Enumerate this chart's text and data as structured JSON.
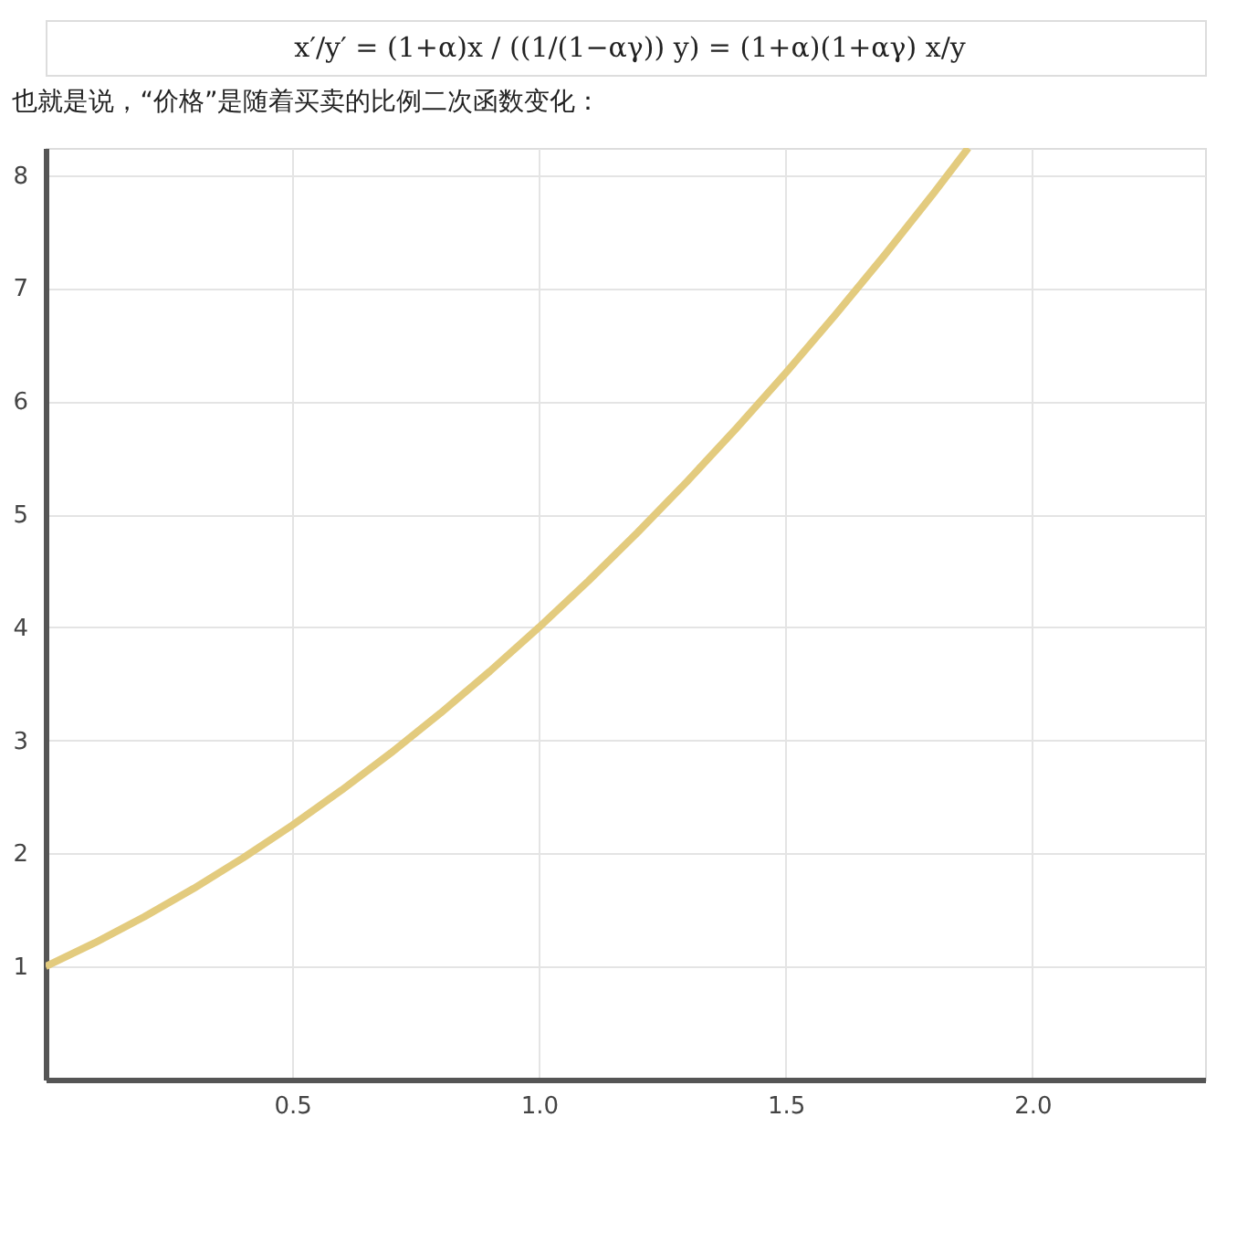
{
  "chart_data": {
    "type": "line",
    "title": "也就是说，“价格”是随着买卖的比例二次函数变化：",
    "annotations": [
      "x′/y′ = (1+α)x / ((1/(1−αγ)) y) = (1+α)(1+αγ) x/y"
    ],
    "x": [
      0,
      0.1,
      0.2,
      0.3,
      0.4,
      0.5,
      0.6,
      0.7,
      0.8,
      0.9,
      1.0,
      1.1,
      1.2,
      1.3,
      1.4,
      1.5,
      1.6,
      1.7,
      1.8,
      1.87
    ],
    "series": [
      {
        "color": "#e3cb7e",
        "values": [
          1.0,
          1.21,
          1.44,
          1.69,
          1.96,
          2.25,
          2.56,
          2.89,
          3.24,
          3.61,
          4.0,
          4.41,
          4.84,
          5.29,
          5.76,
          6.25,
          6.76,
          7.29,
          7.84,
          8.24
        ]
      }
    ],
    "xlim": [
      0,
      2.35
    ],
    "ylim": [
      0,
      8.24
    ],
    "xticks": [
      0.5,
      {
        "value": 1,
        "label": "1.0"
      },
      1.5,
      {
        "value": 2,
        "label": "2.0"
      }
    ],
    "yticks": [
      1,
      2,
      3,
      4,
      5,
      6,
      7,
      8
    ],
    "grid": true,
    "marker": "none",
    "line_style": "solid"
  }
}
